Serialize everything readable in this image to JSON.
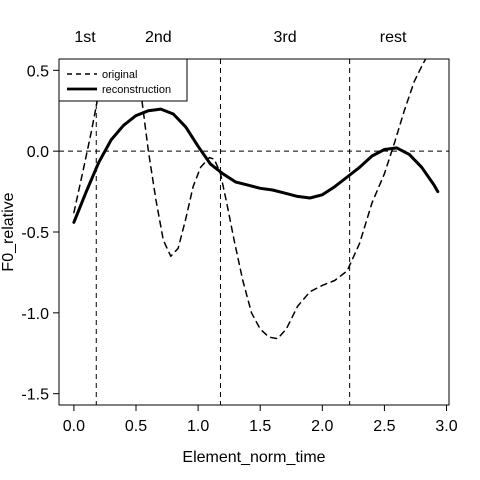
{
  "chart_data": {
    "type": "line",
    "xlabel": "Element_norm_time",
    "ylabel": "F0_relative",
    "xlim": [
      -0.12,
      3.02
    ],
    "ylim": [
      -1.57,
      0.57
    ],
    "x_ticks": [
      0.0,
      0.5,
      1.0,
      1.5,
      2.0,
      2.5,
      3.0
    ],
    "x_tick_labels": [
      "0.0",
      "0.5",
      "1.0",
      "1.5",
      "2.0",
      "2.5",
      "3.0"
    ],
    "y_ticks": [
      -1.5,
      -1.0,
      -0.5,
      0.0,
      0.5
    ],
    "y_tick_labels": [
      "-1.5",
      "-1.0",
      "-0.5",
      "0.0",
      "0.5"
    ],
    "segment_boundaries": [
      0.18,
      1.18,
      2.22
    ],
    "segment_labels": [
      {
        "label": "1st",
        "x": 0.09
      },
      {
        "label": "2nd",
        "x": 0.68
      },
      {
        "label": "3rd",
        "x": 1.7
      },
      {
        "label": "rest",
        "x": 2.57
      }
    ],
    "reference_line_y": 0.0,
    "grid": false,
    "legend_position": "top-left",
    "series": [
      {
        "name": "original",
        "style": "dashed",
        "color": "#000000",
        "points": [
          [
            0.0,
            -0.38
          ],
          [
            0.08,
            -0.1
          ],
          [
            0.14,
            0.12
          ],
          [
            0.18,
            0.28
          ],
          [
            0.21,
            0.42
          ],
          null,
          [
            0.53,
            0.58
          ],
          [
            0.55,
            0.3
          ],
          [
            0.6,
            0.0
          ],
          [
            0.66,
            -0.3
          ],
          [
            0.72,
            -0.55
          ],
          [
            0.78,
            -0.65
          ],
          [
            0.84,
            -0.6
          ],
          [
            0.9,
            -0.42
          ],
          [
            0.96,
            -0.22
          ],
          [
            1.02,
            -0.1
          ],
          [
            1.09,
            -0.04
          ],
          [
            1.13,
            -0.05
          ],
          [
            1.18,
            -0.14
          ],
          [
            1.23,
            -0.32
          ],
          [
            1.29,
            -0.55
          ],
          [
            1.36,
            -0.8
          ],
          [
            1.43,
            -1.0
          ],
          [
            1.5,
            -1.1
          ],
          [
            1.57,
            -1.15
          ],
          [
            1.64,
            -1.16
          ],
          [
            1.71,
            -1.1
          ],
          [
            1.8,
            -0.96
          ],
          [
            1.9,
            -0.87
          ],
          [
            2.0,
            -0.83
          ],
          [
            2.1,
            -0.8
          ],
          [
            2.2,
            -0.74
          ],
          [
            2.3,
            -0.57
          ],
          [
            2.4,
            -0.32
          ],
          [
            2.5,
            -0.14
          ],
          [
            2.58,
            0.05
          ],
          [
            2.66,
            0.25
          ],
          [
            2.74,
            0.43
          ],
          [
            2.81,
            0.54
          ],
          [
            2.84,
            0.58
          ]
        ]
      },
      {
        "name": "reconstruction",
        "style": "solid",
        "color": "#000000",
        "points": [
          [
            0.0,
            -0.44
          ],
          [
            0.1,
            -0.25
          ],
          [
            0.2,
            -0.07
          ],
          [
            0.3,
            0.07
          ],
          [
            0.4,
            0.16
          ],
          [
            0.5,
            0.22
          ],
          [
            0.6,
            0.25
          ],
          [
            0.7,
            0.26
          ],
          [
            0.8,
            0.23
          ],
          [
            0.9,
            0.15
          ],
          [
            1.0,
            0.03
          ],
          [
            1.1,
            -0.08
          ],
          [
            1.2,
            -0.14
          ],
          [
            1.3,
            -0.19
          ],
          [
            1.4,
            -0.21
          ],
          [
            1.5,
            -0.23
          ],
          [
            1.6,
            -0.24
          ],
          [
            1.7,
            -0.26
          ],
          [
            1.8,
            -0.28
          ],
          [
            1.9,
            -0.29
          ],
          [
            2.0,
            -0.27
          ],
          [
            2.1,
            -0.22
          ],
          [
            2.2,
            -0.16
          ],
          [
            2.3,
            -0.1
          ],
          [
            2.4,
            -0.03
          ],
          [
            2.5,
            0.01
          ],
          [
            2.6,
            0.02
          ],
          [
            2.7,
            -0.02
          ],
          [
            2.8,
            -0.1
          ],
          [
            2.9,
            -0.21
          ],
          [
            2.93,
            -0.25
          ]
        ]
      }
    ]
  }
}
